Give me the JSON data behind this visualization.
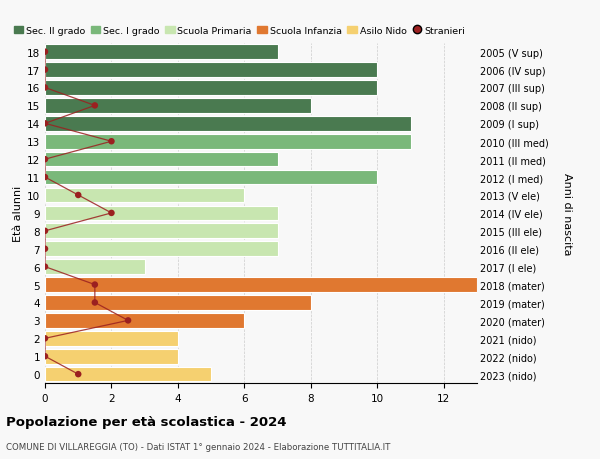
{
  "ages": [
    18,
    17,
    16,
    15,
    14,
    13,
    12,
    11,
    10,
    9,
    8,
    7,
    6,
    5,
    4,
    3,
    2,
    1,
    0
  ],
  "right_labels": [
    "2005 (V sup)",
    "2006 (IV sup)",
    "2007 (III sup)",
    "2008 (II sup)",
    "2009 (I sup)",
    "2010 (III med)",
    "2011 (II med)",
    "2012 (I med)",
    "2013 (V ele)",
    "2014 (IV ele)",
    "2015 (III ele)",
    "2016 (II ele)",
    "2017 (I ele)",
    "2018 (mater)",
    "2019 (mater)",
    "2020 (mater)",
    "2021 (nido)",
    "2022 (nido)",
    "2023 (nido)"
  ],
  "bar_values": [
    7,
    10,
    10,
    8,
    11,
    11,
    7,
    10,
    6,
    7,
    7,
    7,
    3,
    13,
    8,
    6,
    4,
    4,
    5
  ],
  "bar_colors": [
    "#4a7a50",
    "#4a7a50",
    "#4a7a50",
    "#4a7a50",
    "#4a7a50",
    "#7ab87a",
    "#7ab87a",
    "#7ab87a",
    "#c8e6b0",
    "#c8e6b0",
    "#c8e6b0",
    "#c8e6b0",
    "#c8e6b0",
    "#e07830",
    "#e07830",
    "#e07830",
    "#f5d070",
    "#f5d070",
    "#f5d070"
  ],
  "stranieri_x": [
    0,
    0,
    0,
    1.5,
    0,
    2,
    0,
    0,
    1,
    2,
    0,
    0,
    0,
    1.5,
    1.5,
    2.5,
    0,
    0,
    1
  ],
  "color_sec2": "#4a7a50",
  "color_sec1": "#7ab87a",
  "color_primaria": "#c8e6b0",
  "color_infanzia": "#e07830",
  "color_nido": "#f5d070",
  "color_stranieri": "#9b2020",
  "title": "Popolazione per età scolastica - 2024",
  "subtitle": "COMUNE DI VILLAREGGIA (TO) - Dati ISTAT 1° gennaio 2024 - Elaborazione TUTTITALIA.IT",
  "ylabel_left": "Età alunni",
  "ylabel_right": "Anni di nascita",
  "xlim": [
    0,
    13
  ],
  "xticks": [
    0,
    2,
    4,
    6,
    8,
    10,
    12
  ],
  "bg_color": "#f8f8f8",
  "grid_color": "#cccccc"
}
